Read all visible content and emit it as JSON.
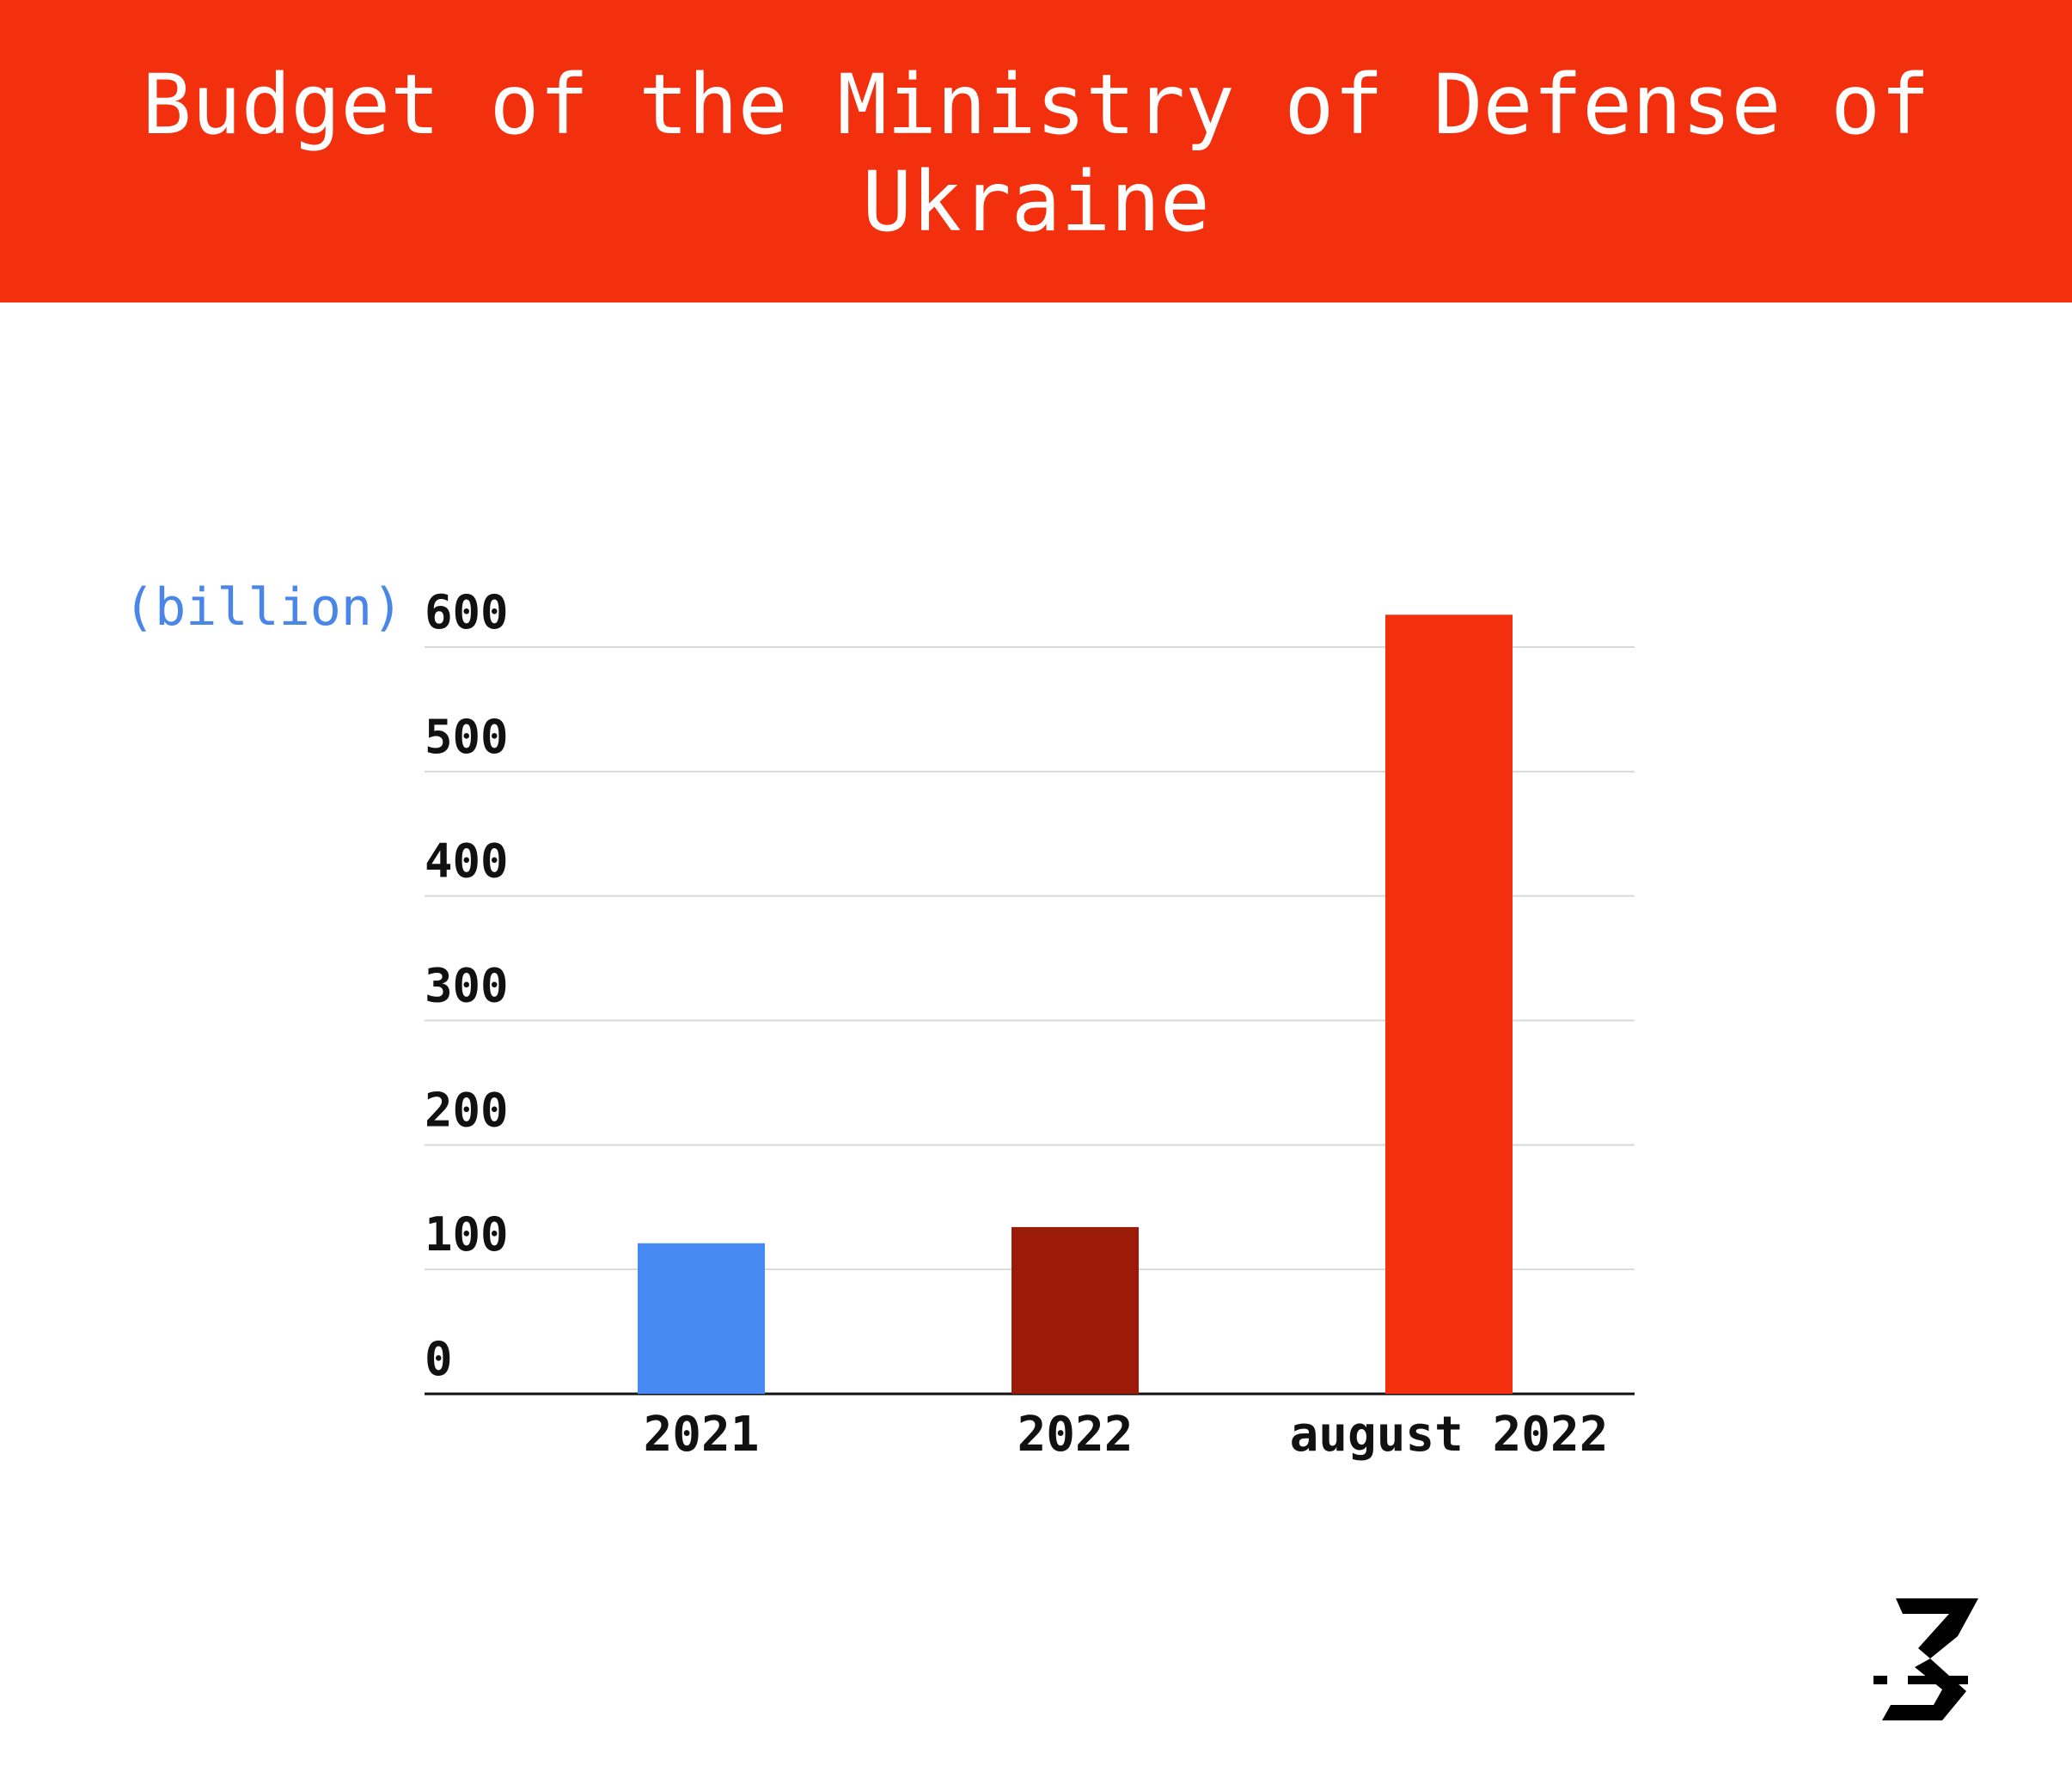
{
  "header": {
    "title": "Budget of the Ministry of Defense of Ukraine",
    "background_color": "#f2300e"
  },
  "chart_data": {
    "type": "bar",
    "title": "Budget of the Ministry of Defense of Ukraine",
    "unit_label": "(billion)",
    "categories": [
      "2021",
      "2022",
      "august 2022"
    ],
    "values": [
      121,
      134,
      626
    ],
    "colors": [
      "#4689f2",
      "#9b1b08",
      "#f2300e"
    ],
    "yticks": [
      0,
      100,
      200,
      300,
      400,
      500,
      600
    ],
    "ylim": [
      0,
      600
    ],
    "grid": true,
    "legend": "none"
  },
  "logo": {
    "icon": "stylized-3-logo-icon"
  }
}
